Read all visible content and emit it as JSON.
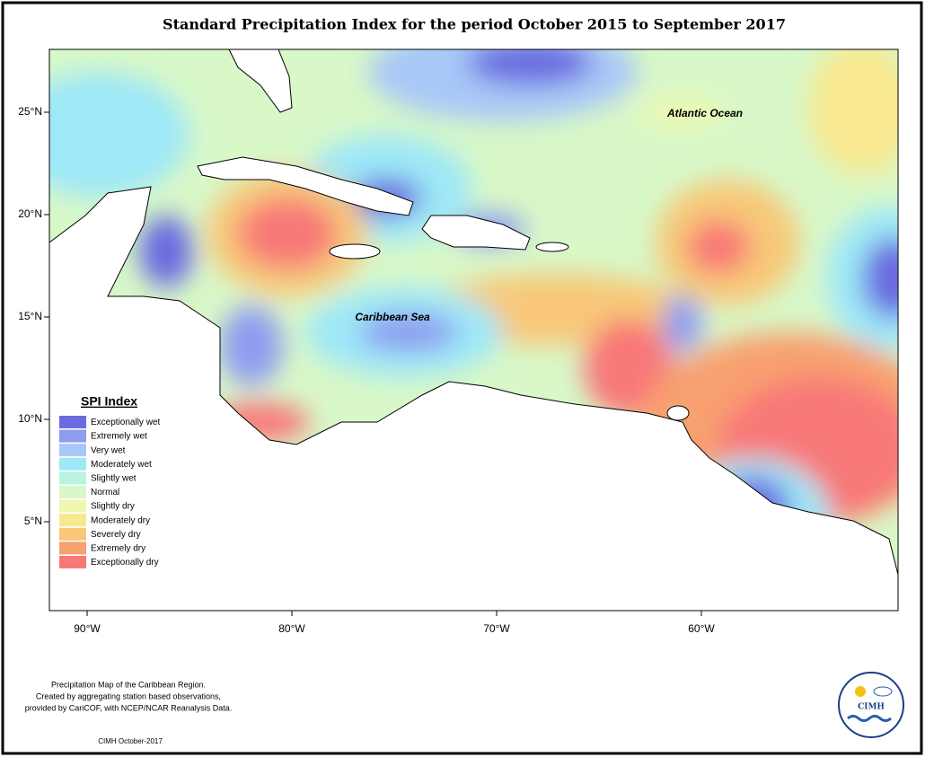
{
  "title": "Standard Precipitation Index for the period October 2015 to September 2017",
  "map": {
    "lon_ticks": [
      {
        "value": -90,
        "label": "90°W"
      },
      {
        "value": -80,
        "label": "80°W"
      },
      {
        "value": -70,
        "label": "70°W"
      },
      {
        "value": -60,
        "label": "60°W"
      }
    ],
    "lat_ticks": [
      {
        "value": 25,
        "label": "25°N"
      },
      {
        "value": 20,
        "label": "20°N"
      },
      {
        "value": 15,
        "label": "15°N"
      },
      {
        "value": 10,
        "label": "10°N"
      },
      {
        "value": 5,
        "label": "5°N"
      }
    ],
    "labels": [
      "Atlantic Ocean",
      "Caribbean Sea"
    ]
  },
  "legend": {
    "title": "SPI Index",
    "items": [
      {
        "label": "Exceptionally wet",
        "color": "#6b6be0"
      },
      {
        "label": "Extremely wet",
        "color": "#8e9cf0"
      },
      {
        "label": "Very wet",
        "color": "#a8c8f8"
      },
      {
        "label": "Moderately wet",
        "color": "#9ee8f8"
      },
      {
        "label": "Slightly wet",
        "color": "#b8f4e0"
      },
      {
        "label": "Normal",
        "color": "#d8f8c8"
      },
      {
        "label": "Slightly dry",
        "color": "#f0f8b0"
      },
      {
        "label": "Moderately dry",
        "color": "#f8e890"
      },
      {
        "label": "Severely dry",
        "color": "#f8c878"
      },
      {
        "label": "Extremely dry",
        "color": "#f8a070"
      },
      {
        "label": "Exceptionally dry",
        "color": "#f87878"
      }
    ]
  },
  "footer": {
    "notes": [
      "Precipitation Map of the Caribbean Region.",
      "Created by aggregating station based observations,",
      "provided by CariCOF, with NCEP/NCAR Reanalysis Data."
    ],
    "credit": "CIMH October-2017"
  },
  "logo": {
    "text": "CIMH"
  }
}
